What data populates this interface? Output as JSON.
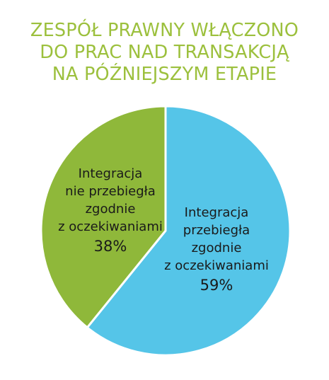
{
  "chart_data": {
    "type": "pie",
    "title_lines": [
      "ZESPÓŁ PRAWNY WŁĄCZONO",
      "DO PRAC NAD TRANSAKCJĄ",
      "NA PÓŹNIEJSZYM ETAPIE"
    ],
    "start_angle_deg": 0,
    "direction": "clockwise",
    "slices": [
      {
        "value": 59,
        "label_lines": [
          "Integracja",
          "przebiegła",
          "zgodnie",
          "z oczekiwaniami"
        ],
        "percent_text": "59%",
        "color": "#55c5e8"
      },
      {
        "value": 38,
        "label_lines": [
          "Integracja",
          "nie przebiegła",
          "zgodnie",
          "z oczekiwaniami"
        ],
        "percent_text": "38%",
        "color": "#8fb83a"
      }
    ],
    "separator_color": "#ffffff"
  }
}
